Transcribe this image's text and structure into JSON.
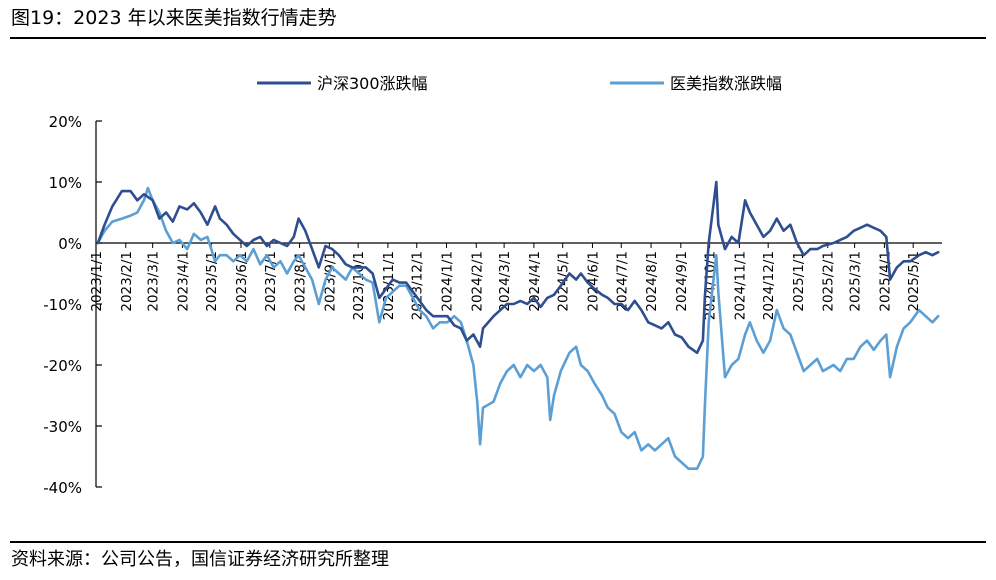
{
  "figure": {
    "title": "图19：2023 年以来医美指数行情走势",
    "source": "资料来源：公司公告，国信证券经济研究所整理"
  },
  "chart_data": {
    "type": "line",
    "ylim": [
      -0.4,
      0.2
    ],
    "yticks": [
      0.2,
      0.1,
      0.0,
      -0.1,
      -0.2,
      -0.3,
      -0.4
    ],
    "ytick_labels": [
      "20%",
      "10%",
      "0%",
      "-10%",
      "-20%",
      "-30%",
      "-40%"
    ],
    "xlim": [
      "2023-01-01",
      "2025-05-31"
    ],
    "xticks": [
      "2023-01-01",
      "2023-02-01",
      "2023-03-01",
      "2023-04-01",
      "2023-05-01",
      "2023-06-01",
      "2023-07-01",
      "2023-08-01",
      "2023-09-01",
      "2023-10-01",
      "2023-11-01",
      "2023-12-01",
      "2024-01-01",
      "2024-02-01",
      "2024-03-01",
      "2024-04-01",
      "2024-05-01",
      "2024-06-01",
      "2024-07-01",
      "2024-08-01",
      "2024-09-01",
      "2024-10-01",
      "2024-11-01",
      "2024-12-01",
      "2025-01-01",
      "2025-02-01",
      "2025-03-01",
      "2025-04-01",
      "2025-05-01"
    ],
    "xtick_labels": [
      "2023/1/1",
      "2023/2/1",
      "2023/3/1",
      "2023/4/1",
      "2023/5/1",
      "2023/6/1",
      "2023/7/1",
      "2023/8/1",
      "2023/9/1",
      "2023/10/1",
      "2023/11/1",
      "2023/12/1",
      "2024/1/1",
      "2024/2/1",
      "2024/3/1",
      "2024/4/1",
      "2024/5/1",
      "2024/6/1",
      "2024/7/1",
      "2024/8/1",
      "2024/9/1",
      "2024/10/1",
      "2024/11/1",
      "2024/12/1",
      "2025/1/1",
      "2025/2/1",
      "2025/3/1",
      "2025/4/1",
      "2025/5/1"
    ],
    "legend_position": "top-center",
    "grid": false,
    "series": [
      {
        "name": "沪深300涨跌幅",
        "color": "#2e4e8f",
        "points": [
          [
            "2023-01-03",
            0.0
          ],
          [
            "2023-01-10",
            0.03
          ],
          [
            "2023-01-18",
            0.06
          ],
          [
            "2023-01-28",
            0.085
          ],
          [
            "2023-02-06",
            0.085
          ],
          [
            "2023-02-13",
            0.07
          ],
          [
            "2023-02-20",
            0.08
          ],
          [
            "2023-03-01",
            0.07
          ],
          [
            "2023-03-08",
            0.04
          ],
          [
            "2023-03-15",
            0.05
          ],
          [
            "2023-03-22",
            0.035
          ],
          [
            "2023-03-29",
            0.06
          ],
          [
            "2023-04-06",
            0.055
          ],
          [
            "2023-04-13",
            0.065
          ],
          [
            "2023-04-20",
            0.05
          ],
          [
            "2023-04-27",
            0.03
          ],
          [
            "2023-05-05",
            0.06
          ],
          [
            "2023-05-10",
            0.04
          ],
          [
            "2023-05-17",
            0.03
          ],
          [
            "2023-05-24",
            0.015
          ],
          [
            "2023-05-31",
            0.005
          ],
          [
            "2023-06-07",
            -0.005
          ],
          [
            "2023-06-14",
            0.005
          ],
          [
            "2023-06-21",
            0.01
          ],
          [
            "2023-06-28",
            -0.005
          ],
          [
            "2023-07-05",
            0.005
          ],
          [
            "2023-07-12",
            0.0
          ],
          [
            "2023-07-19",
            -0.005
          ],
          [
            "2023-07-26",
            0.01
          ],
          [
            "2023-07-31",
            0.04
          ],
          [
            "2023-08-07",
            0.02
          ],
          [
            "2023-08-14",
            -0.01
          ],
          [
            "2023-08-21",
            -0.04
          ],
          [
            "2023-08-28",
            -0.005
          ],
          [
            "2023-09-04",
            -0.01
          ],
          [
            "2023-09-11",
            -0.02
          ],
          [
            "2023-09-18",
            -0.035
          ],
          [
            "2023-09-25",
            -0.04
          ],
          [
            "2023-10-09",
            -0.04
          ],
          [
            "2023-10-16",
            -0.05
          ],
          [
            "2023-10-23",
            -0.09
          ],
          [
            "2023-10-30",
            -0.075
          ],
          [
            "2023-11-06",
            -0.06
          ],
          [
            "2023-11-13",
            -0.065
          ],
          [
            "2023-11-20",
            -0.065
          ],
          [
            "2023-11-27",
            -0.08
          ],
          [
            "2023-12-04",
            -0.095
          ],
          [
            "2023-12-11",
            -0.11
          ],
          [
            "2023-12-18",
            -0.12
          ],
          [
            "2023-12-25",
            -0.12
          ],
          [
            "2024-01-02",
            -0.12
          ],
          [
            "2024-01-09",
            -0.135
          ],
          [
            "2024-01-16",
            -0.14
          ],
          [
            "2024-01-22",
            -0.16
          ],
          [
            "2024-01-29",
            -0.15
          ],
          [
            "2024-02-05",
            -0.17
          ],
          [
            "2024-02-08",
            -0.14
          ],
          [
            "2024-02-19",
            -0.12
          ],
          [
            "2024-02-26",
            -0.11
          ],
          [
            "2024-03-04",
            -0.1
          ],
          [
            "2024-03-11",
            -0.1
          ],
          [
            "2024-03-18",
            -0.095
          ],
          [
            "2024-03-25",
            -0.1
          ],
          [
            "2024-04-01",
            -0.09
          ],
          [
            "2024-04-08",
            -0.105
          ],
          [
            "2024-04-15",
            -0.09
          ],
          [
            "2024-04-22",
            -0.085
          ],
          [
            "2024-04-29",
            -0.07
          ],
          [
            "2024-05-08",
            -0.05
          ],
          [
            "2024-05-15",
            -0.06
          ],
          [
            "2024-05-20",
            -0.05
          ],
          [
            "2024-05-27",
            -0.065
          ],
          [
            "2024-06-03",
            -0.075
          ],
          [
            "2024-06-11",
            -0.085
          ],
          [
            "2024-06-17",
            -0.09
          ],
          [
            "2024-06-24",
            -0.1
          ],
          [
            "2024-07-01",
            -0.1
          ],
          [
            "2024-07-08",
            -0.11
          ],
          [
            "2024-07-15",
            -0.095
          ],
          [
            "2024-07-22",
            -0.11
          ],
          [
            "2024-07-29",
            -0.13
          ],
          [
            "2024-08-05",
            -0.135
          ],
          [
            "2024-08-12",
            -0.14
          ],
          [
            "2024-08-19",
            -0.13
          ],
          [
            "2024-08-26",
            -0.15
          ],
          [
            "2024-09-02",
            -0.155
          ],
          [
            "2024-09-09",
            -0.17
          ],
          [
            "2024-09-18",
            -0.18
          ],
          [
            "2024-09-24",
            -0.16
          ],
          [
            "2024-09-26",
            -0.09
          ],
          [
            "2024-09-30",
            0.0
          ],
          [
            "2024-10-08",
            0.1
          ],
          [
            "2024-10-10",
            0.03
          ],
          [
            "2024-10-17",
            -0.01
          ],
          [
            "2024-10-24",
            0.01
          ],
          [
            "2024-10-31",
            0.0
          ],
          [
            "2024-11-07",
            0.07
          ],
          [
            "2024-11-12",
            0.05
          ],
          [
            "2024-11-19",
            0.03
          ],
          [
            "2024-11-26",
            0.01
          ],
          [
            "2024-12-03",
            0.02
          ],
          [
            "2024-12-10",
            0.04
          ],
          [
            "2024-12-17",
            0.02
          ],
          [
            "2024-12-24",
            0.03
          ],
          [
            "2024-12-31",
            0.0
          ],
          [
            "2025-01-07",
            -0.02
          ],
          [
            "2025-01-14",
            -0.01
          ],
          [
            "2025-01-21",
            -0.01
          ],
          [
            "2025-01-27",
            -0.005
          ],
          [
            "2025-02-07",
            0.0
          ],
          [
            "2025-02-14",
            0.005
          ],
          [
            "2025-02-21",
            0.01
          ],
          [
            "2025-02-28",
            0.02
          ],
          [
            "2025-03-07",
            0.025
          ],
          [
            "2025-03-14",
            0.03
          ],
          [
            "2025-03-21",
            0.025
          ],
          [
            "2025-03-28",
            0.02
          ],
          [
            "2025-04-03",
            0.01
          ],
          [
            "2025-04-07",
            -0.06
          ],
          [
            "2025-04-14",
            -0.04
          ],
          [
            "2025-04-21",
            -0.03
          ],
          [
            "2025-04-28",
            -0.03
          ],
          [
            "2025-05-07",
            -0.02
          ],
          [
            "2025-05-14",
            -0.015
          ],
          [
            "2025-05-21",
            -0.02
          ],
          [
            "2025-05-27",
            -0.015
          ]
        ]
      },
      {
        "name": "医美指数涨跌幅",
        "color": "#5b9fd4",
        "points": [
          [
            "2023-01-03",
            0.0
          ],
          [
            "2023-01-10",
            0.02
          ],
          [
            "2023-01-18",
            0.035
          ],
          [
            "2023-01-28",
            0.04
          ],
          [
            "2023-02-06",
            0.045
          ],
          [
            "2023-02-13",
            0.05
          ],
          [
            "2023-02-20",
            0.07
          ],
          [
            "2023-02-24",
            0.09
          ],
          [
            "2023-03-01",
            0.07
          ],
          [
            "2023-03-08",
            0.05
          ],
          [
            "2023-03-15",
            0.02
          ],
          [
            "2023-03-22",
            0.0
          ],
          [
            "2023-03-29",
            0.005
          ],
          [
            "2023-04-06",
            -0.01
          ],
          [
            "2023-04-13",
            0.015
          ],
          [
            "2023-04-20",
            0.005
          ],
          [
            "2023-04-27",
            0.01
          ],
          [
            "2023-05-05",
            -0.03
          ],
          [
            "2023-05-10",
            -0.02
          ],
          [
            "2023-05-17",
            -0.02
          ],
          [
            "2023-05-24",
            -0.03
          ],
          [
            "2023-05-31",
            -0.02
          ],
          [
            "2023-06-07",
            -0.03
          ],
          [
            "2023-06-14",
            -0.01
          ],
          [
            "2023-06-21",
            -0.035
          ],
          [
            "2023-06-28",
            -0.02
          ],
          [
            "2023-07-05",
            -0.04
          ],
          [
            "2023-07-12",
            -0.03
          ],
          [
            "2023-07-19",
            -0.05
          ],
          [
            "2023-07-26",
            -0.03
          ],
          [
            "2023-07-31",
            -0.02
          ],
          [
            "2023-08-07",
            -0.04
          ],
          [
            "2023-08-14",
            -0.06
          ],
          [
            "2023-08-21",
            -0.1
          ],
          [
            "2023-08-28",
            -0.06
          ],
          [
            "2023-09-04",
            -0.04
          ],
          [
            "2023-09-11",
            -0.05
          ],
          [
            "2023-09-18",
            -0.06
          ],
          [
            "2023-09-25",
            -0.04
          ],
          [
            "2023-10-09",
            -0.06
          ],
          [
            "2023-10-16",
            -0.065
          ],
          [
            "2023-10-23",
            -0.13
          ],
          [
            "2023-10-30",
            -0.09
          ],
          [
            "2023-11-06",
            -0.08
          ],
          [
            "2023-11-13",
            -0.07
          ],
          [
            "2023-11-20",
            -0.07
          ],
          [
            "2023-11-27",
            -0.09
          ],
          [
            "2023-12-04",
            -0.11
          ],
          [
            "2023-12-11",
            -0.12
          ],
          [
            "2023-12-18",
            -0.14
          ],
          [
            "2023-12-25",
            -0.13
          ],
          [
            "2024-01-02",
            -0.13
          ],
          [
            "2024-01-09",
            -0.12
          ],
          [
            "2024-01-16",
            -0.13
          ],
          [
            "2024-01-22",
            -0.16
          ],
          [
            "2024-01-29",
            -0.2
          ],
          [
            "2024-02-02",
            -0.26
          ],
          [
            "2024-02-05",
            -0.33
          ],
          [
            "2024-02-08",
            -0.27
          ],
          [
            "2024-02-19",
            -0.26
          ],
          [
            "2024-02-26",
            -0.23
          ],
          [
            "2024-03-04",
            -0.21
          ],
          [
            "2024-03-11",
            -0.2
          ],
          [
            "2024-03-18",
            -0.22
          ],
          [
            "2024-03-25",
            -0.2
          ],
          [
            "2024-04-01",
            -0.21
          ],
          [
            "2024-04-08",
            -0.2
          ],
          [
            "2024-04-15",
            -0.22
          ],
          [
            "2024-04-18",
            -0.29
          ],
          [
            "2024-04-22",
            -0.25
          ],
          [
            "2024-04-29",
            -0.21
          ],
          [
            "2024-05-08",
            -0.18
          ],
          [
            "2024-05-15",
            -0.17
          ],
          [
            "2024-05-20",
            -0.2
          ],
          [
            "2024-05-27",
            -0.21
          ],
          [
            "2024-06-03",
            -0.23
          ],
          [
            "2024-06-11",
            -0.25
          ],
          [
            "2024-06-17",
            -0.27
          ],
          [
            "2024-06-24",
            -0.28
          ],
          [
            "2024-07-01",
            -0.31
          ],
          [
            "2024-07-08",
            -0.32
          ],
          [
            "2024-07-15",
            -0.31
          ],
          [
            "2024-07-22",
            -0.34
          ],
          [
            "2024-07-29",
            -0.33
          ],
          [
            "2024-08-05",
            -0.34
          ],
          [
            "2024-08-12",
            -0.33
          ],
          [
            "2024-08-19",
            -0.32
          ],
          [
            "2024-08-26",
            -0.35
          ],
          [
            "2024-09-02",
            -0.36
          ],
          [
            "2024-09-09",
            -0.37
          ],
          [
            "2024-09-18",
            -0.37
          ],
          [
            "2024-09-24",
            -0.35
          ],
          [
            "2024-09-26",
            -0.27
          ],
          [
            "2024-09-30",
            -0.13
          ],
          [
            "2024-10-08",
            -0.02
          ],
          [
            "2024-10-10",
            -0.08
          ],
          [
            "2024-10-17",
            -0.22
          ],
          [
            "2024-10-24",
            -0.2
          ],
          [
            "2024-10-31",
            -0.19
          ],
          [
            "2024-11-07",
            -0.15
          ],
          [
            "2024-11-12",
            -0.13
          ],
          [
            "2024-11-19",
            -0.16
          ],
          [
            "2024-11-26",
            -0.18
          ],
          [
            "2024-12-03",
            -0.16
          ],
          [
            "2024-12-10",
            -0.11
          ],
          [
            "2024-12-17",
            -0.14
          ],
          [
            "2024-12-24",
            -0.15
          ],
          [
            "2024-12-31",
            -0.18
          ],
          [
            "2025-01-07",
            -0.21
          ],
          [
            "2025-01-14",
            -0.2
          ],
          [
            "2025-01-21",
            -0.19
          ],
          [
            "2025-01-27",
            -0.21
          ],
          [
            "2025-02-07",
            -0.2
          ],
          [
            "2025-02-14",
            -0.21
          ],
          [
            "2025-02-21",
            -0.19
          ],
          [
            "2025-02-28",
            -0.19
          ],
          [
            "2025-03-07",
            -0.17
          ],
          [
            "2025-03-14",
            -0.16
          ],
          [
            "2025-03-21",
            -0.175
          ],
          [
            "2025-03-28",
            -0.16
          ],
          [
            "2025-04-03",
            -0.15
          ],
          [
            "2025-04-07",
            -0.22
          ],
          [
            "2025-04-14",
            -0.17
          ],
          [
            "2025-04-21",
            -0.14
          ],
          [
            "2025-04-28",
            -0.13
          ],
          [
            "2025-05-07",
            -0.11
          ],
          [
            "2025-05-14",
            -0.12
          ],
          [
            "2025-05-21",
            -0.13
          ],
          [
            "2025-05-27",
            -0.12
          ]
        ]
      }
    ]
  }
}
